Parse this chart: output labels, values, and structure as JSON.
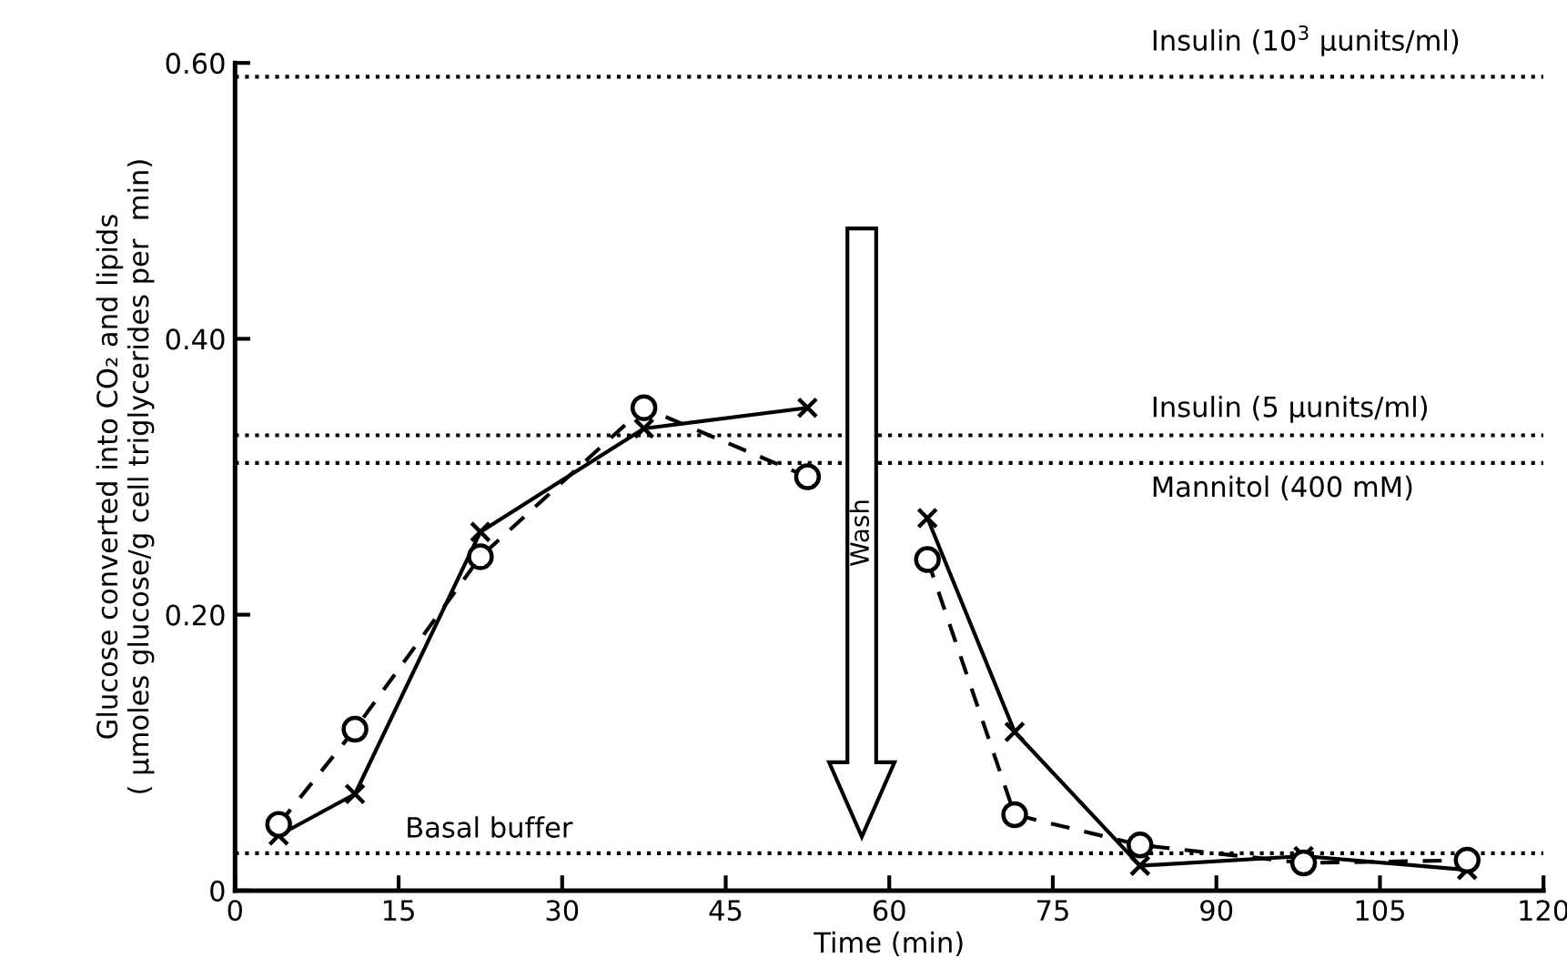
{
  "chart_data": {
    "type": "line",
    "xlabel": "Time (min)",
    "ylabel": "Glucose converted into CO₂ and lipids\n( μmoles glucose/g cell triglycerides per  min)",
    "xlim": [
      0,
      120
    ],
    "xticks": [
      0,
      15,
      30,
      45,
      60,
      75,
      90,
      105,
      120
    ],
    "ylim": [
      0,
      0.6
    ],
    "yticks": [
      0,
      {
        "value": 0.2,
        "label": "0.20"
      },
      {
        "value": 0.4,
        "label": "0.40"
      },
      {
        "value": 0.6,
        "label": "0.60"
      }
    ],
    "grid": false,
    "legend": false,
    "series": [
      {
        "color": "#000000",
        "marker": "cross",
        "line_style": "solid",
        "x": [
          4,
          11,
          22.5,
          37.5,
          52.5,
          58,
          63.5,
          71.5,
          83,
          98,
          113
        ],
        "values": [
          0.04,
          0.07,
          0.26,
          0.335,
          0.35,
          null,
          0.27,
          0.115,
          0.018,
          0.025,
          0.015
        ]
      },
      {
        "color": "#000000",
        "marker": "circle",
        "line_style": "dashed",
        "x": [
          4,
          11,
          22.5,
          37.5,
          52.5,
          58,
          63.5,
          71.5,
          83,
          98,
          113
        ],
        "values": [
          0.048,
          0.117,
          0.242,
          0.35,
          0.3,
          null,
          0.24,
          0.055,
          0.033,
          0.02,
          0.022
        ]
      }
    ],
    "ref_lines": [
      {
        "axis": "y",
        "value": 0.59,
        "label": "Insulin (10$^{3}$ μunits/ml)",
        "line_style": "dotted",
        "color": "#000000"
      },
      {
        "axis": "y",
        "value": 0.33,
        "label": "Insulin (5 μunits/ml)",
        "line_style": "dotted",
        "color": "#000000"
      },
      {
        "axis": "y",
        "value": 0.31,
        "label": "Mannitol (400 mM)",
        "line_style": "dotted",
        "color": "#000000"
      },
      {
        "axis": "y",
        "value": 0.027,
        "label": "Basal buffer",
        "line_style": "dotted",
        "color": "#000000"
      }
    ],
    "annotations": [
      "Wash"
    ]
  }
}
